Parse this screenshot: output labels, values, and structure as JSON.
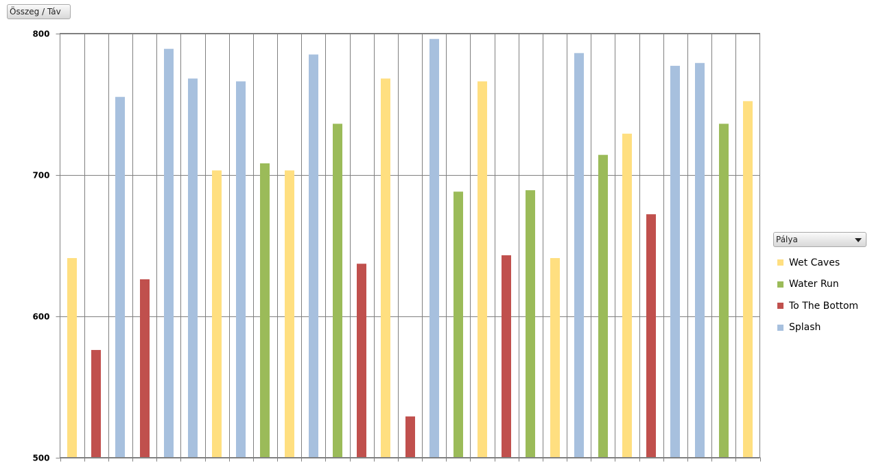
{
  "value_field_button": {
    "label": "Összeg / Táv"
  },
  "legend_field_button": {
    "label": "Pálya"
  },
  "chart_data": {
    "type": "bar",
    "title": "",
    "xlabel": "",
    "ylabel": "",
    "ylim": [
      500,
      800
    ],
    "yticks": [
      "500",
      "600",
      "700",
      "800"
    ],
    "grid": true,
    "legend_placement": "right",
    "legend": [
      {
        "name": "Wet Caves",
        "color": "#FFDF80"
      },
      {
        "name": "Water Run",
        "color": "#9BBB59"
      },
      {
        "name": "To The Bottom",
        "color": "#C0504D"
      },
      {
        "name": "Splash",
        "color": "#A7C0DE"
      }
    ],
    "bars": [
      {
        "series": "Wet Caves",
        "value": 641
      },
      {
        "series": "To The Bottom",
        "value": 576
      },
      {
        "series": "Splash",
        "value": 755
      },
      {
        "series": "To The Bottom",
        "value": 626
      },
      {
        "series": "Splash",
        "value": 789
      },
      {
        "series": "Splash",
        "value": 768
      },
      {
        "series": "Wet Caves",
        "value": 703
      },
      {
        "series": "Splash",
        "value": 766
      },
      {
        "series": "Water Run",
        "value": 708
      },
      {
        "series": "Wet Caves",
        "value": 703
      },
      {
        "series": "Splash",
        "value": 785
      },
      {
        "series": "Water Run",
        "value": 736
      },
      {
        "series": "To The Bottom",
        "value": 637
      },
      {
        "series": "Wet Caves",
        "value": 768
      },
      {
        "series": "To The Bottom",
        "value": 529
      },
      {
        "series": "Splash",
        "value": 796
      },
      {
        "series": "Water Run",
        "value": 688
      },
      {
        "series": "Wet Caves",
        "value": 766
      },
      {
        "series": "To The Bottom",
        "value": 643
      },
      {
        "series": "Water Run",
        "value": 689
      },
      {
        "series": "Wet Caves",
        "value": 641
      },
      {
        "series": "Splash",
        "value": 786
      },
      {
        "series": "Water Run",
        "value": 714
      },
      {
        "series": "Wet Caves",
        "value": 729
      },
      {
        "series": "To The Bottom",
        "value": 672
      },
      {
        "series": "Splash",
        "value": 777
      },
      {
        "series": "Splash",
        "value": 779
      },
      {
        "series": "Water Run",
        "value": 736
      },
      {
        "series": "Wet Caves",
        "value": 752
      }
    ]
  }
}
